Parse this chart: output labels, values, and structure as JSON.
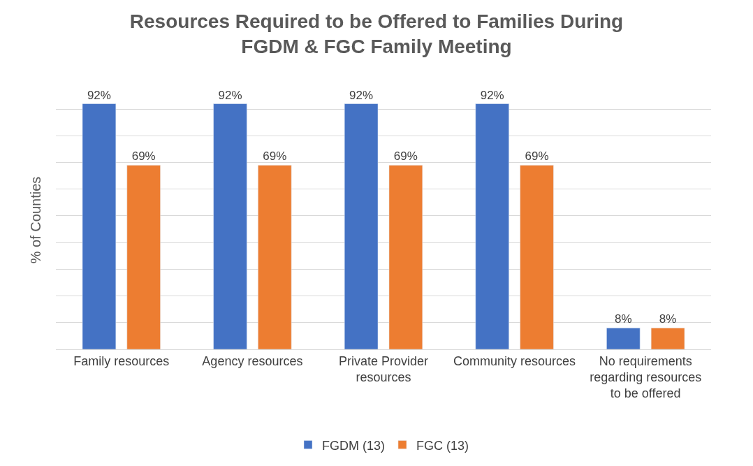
{
  "chart_data": {
    "type": "bar",
    "title": "Resources Required to be Offered to Families During FGDM & FGC Family Meeting",
    "ylabel": "% of Counties",
    "categories": [
      "Family resources",
      "Agency resources",
      "Private Provider resources",
      "Community resources",
      "No requirements regarding resources to be offered"
    ],
    "series": [
      {
        "name": "FGDM (13)",
        "color": "#4472c4",
        "values": [
          92,
          92,
          92,
          92,
          8
        ],
        "value_labels": [
          "92%",
          "92%",
          "92%",
          "92%",
          "8%"
        ]
      },
      {
        "name": "FGC (13)",
        "color": "#ed7d31",
        "values": [
          69,
          69,
          69,
          69,
          8
        ],
        "value_labels": [
          "69%",
          "69%",
          "69%",
          "69%",
          "8%"
        ]
      }
    ],
    "tick_labels": "x",
    "grid": "y",
    "legend": "bottom"
  }
}
